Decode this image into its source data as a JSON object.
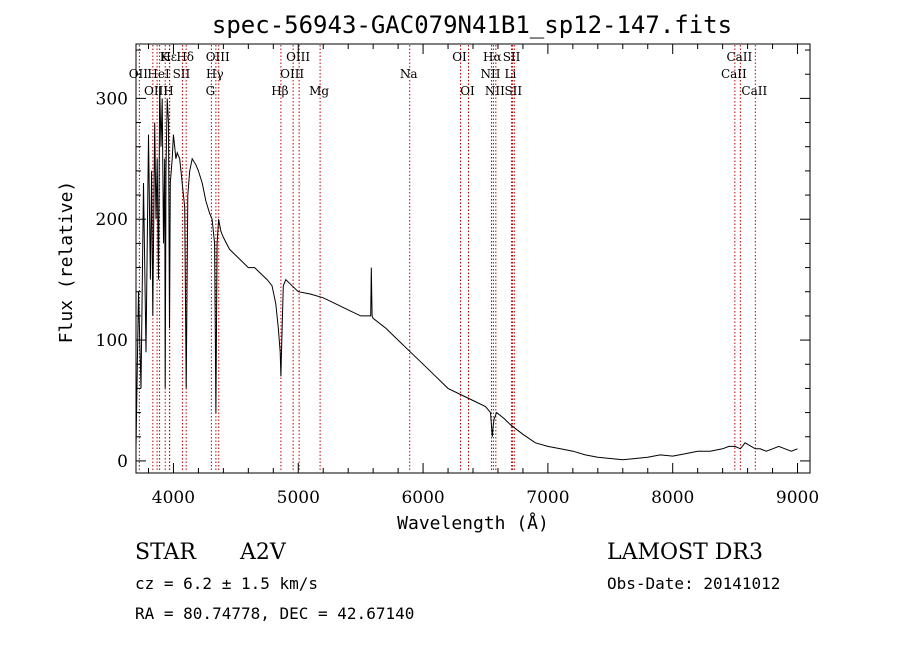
{
  "chart_data": {
    "type": "line",
    "title": "spec-56943-GAC079N41B1_sp12-147.fits",
    "xlabel": "Wavelength (Å)",
    "ylabel": "Flux (relative)",
    "xlim": [
      3700,
      9100
    ],
    "ylim": [
      -10,
      345
    ],
    "x_ticks": [
      4000,
      5000,
      6000,
      7000,
      8000,
      9000
    ],
    "y_ticks": [
      0,
      100,
      200,
      300
    ],
    "series": [
      {
        "name": "flux",
        "x": [
          3700,
          3720,
          3740,
          3760,
          3780,
          3800,
          3815,
          3825,
          3835,
          3850,
          3860,
          3870,
          3880,
          3890,
          3900,
          3910,
          3920,
          3930,
          3934,
          3940,
          3950,
          3960,
          3968,
          3975,
          3990,
          4000,
          4010,
          4020,
          4030,
          4050,
          4070,
          4090,
          4102,
          4115,
          4130,
          4150,
          4180,
          4200,
          4230,
          4260,
          4290,
          4310,
          4330,
          4340,
          4350,
          4362,
          4380,
          4400,
          4450,
          4500,
          4550,
          4600,
          4650,
          4700,
          4750,
          4790,
          4820,
          4840,
          4855,
          4861,
          4868,
          4880,
          4900,
          4950,
          5000,
          5100,
          5200,
          5300,
          5400,
          5500,
          5580,
          5585,
          5592,
          5600,
          5700,
          5800,
          5900,
          6000,
          6100,
          6200,
          6300,
          6400,
          6500,
          6540,
          6555,
          6563,
          6570,
          6590,
          6650,
          6700,
          6800,
          6900,
          7000,
          7100,
          7200,
          7300,
          7400,
          7500,
          7600,
          7700,
          7800,
          7900,
          8000,
          8100,
          8200,
          8300,
          8400,
          8450,
          8500,
          8542,
          8580,
          8630,
          8662,
          8700,
          8750,
          8800,
          8850,
          8900,
          8950,
          9000
        ],
        "values": [
          10,
          140,
          60,
          230,
          90,
          270,
          150,
          240,
          120,
          280,
          200,
          250,
          150,
          310,
          260,
          300,
          180,
          250,
          60,
          240,
          300,
          280,
          110,
          230,
          250,
          270,
          260,
          250,
          255,
          250,
          230,
          210,
          60,
          220,
          240,
          250,
          245,
          240,
          230,
          215,
          205,
          200,
          180,
          40,
          180,
          200,
          190,
          185,
          175,
          170,
          165,
          160,
          160,
          155,
          150,
          145,
          130,
          110,
          90,
          70,
          100,
          145,
          150,
          145,
          140,
          138,
          135,
          130,
          125,
          120,
          120,
          160,
          120,
          118,
          110,
          100,
          90,
          80,
          70,
          60,
          55,
          50,
          45,
          40,
          20,
          30,
          35,
          40,
          35,
          30,
          22,
          15,
          12,
          10,
          8,
          5,
          3,
          2,
          1,
          2,
          3,
          5,
          4,
          6,
          8,
          8,
          10,
          12,
          12,
          10,
          15,
          12,
          10,
          10,
          8,
          10,
          12,
          10,
          8,
          10
        ]
      }
    ],
    "lines_row1": [
      {
        "name": "Hε",
        "x": 3970
      },
      {
        "name": "K",
        "x": 3934
      },
      {
        "name": "Hδ",
        "x": 4102
      },
      {
        "name": "OIII",
        "x": 4363
      },
      {
        "name": "OIII",
        "x": 5007
      },
      {
        "name": "OI",
        "x": 6300
      },
      {
        "name": "Hα",
        "x": 6563
      },
      {
        "name": "SII",
        "x": 6717
      },
      {
        "name": "CaII",
        "x": 8542
      }
    ],
    "lines_row2": [
      {
        "name": "OII",
        "x": 3727
      },
      {
        "name": "HeI",
        "x": 3889
      },
      {
        "name": "SII",
        "x": 4072
      },
      {
        "name": "Hγ",
        "x": 4340
      },
      {
        "name": "OIII",
        "x": 4959
      },
      {
        "name": "Na",
        "x": 5893
      },
      {
        "name": "NII",
        "x": 6548
      },
      {
        "name": "Li",
        "x": 6708
      },
      {
        "name": "CaII",
        "x": 8498
      }
    ],
    "lines_row3": [
      {
        "name": "OIII",
        "x": 3869
      },
      {
        "name": "H",
        "x": 3968
      },
      {
        "name": "G",
        "x": 4304
      },
      {
        "name": "Hβ",
        "x": 4861
      },
      {
        "name": "Mg",
        "x": 5175
      },
      {
        "name": "OI",
        "x": 6364
      },
      {
        "name": "NII",
        "x": 6583
      },
      {
        "name": "SII",
        "x": 6731
      },
      {
        "name": "CaII",
        "x": 8662
      }
    ],
    "extra_marker_x": [
      3835
    ]
  },
  "info": {
    "object_class": "STAR",
    "subclass": "A2V",
    "survey": "LAMOST DR3",
    "cz": "cz = 6.2 ± 1.5 km/s",
    "obs_date": "Obs-Date: 20141012",
    "coords": "RA =  80.74778, DEC =  42.67140"
  }
}
